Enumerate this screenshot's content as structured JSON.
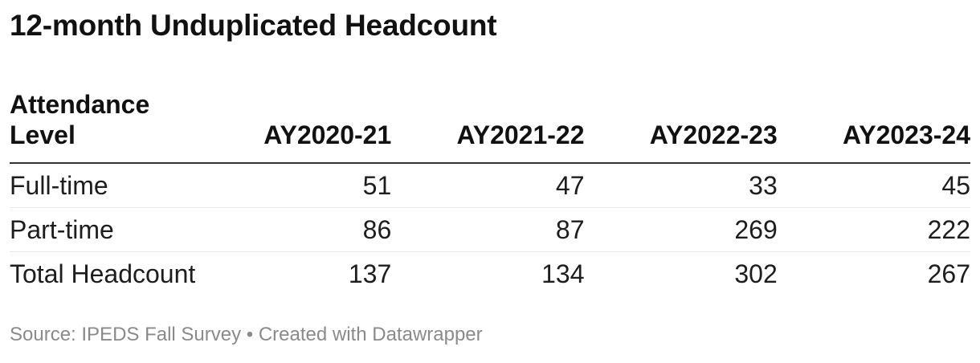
{
  "title": "12-month Unduplicated Headcount",
  "table": {
    "header": {
      "label_column": "Attendance Level",
      "year_columns": [
        "AY2020-21",
        "AY2021-22",
        "AY2022-23",
        "AY2023-24"
      ]
    },
    "rows": [
      {
        "label": "Full-time",
        "values": [
          "51",
          "47",
          "33",
          "45"
        ]
      },
      {
        "label": "Part-time",
        "values": [
          "86",
          "87",
          "269",
          "222"
        ]
      },
      {
        "label": "Total Headcount",
        "values": [
          "137",
          "134",
          "302",
          "267"
        ]
      }
    ]
  },
  "footer": {
    "text": "Source: IPEDS Fall Survey • Created with Datawrapper"
  },
  "colors": {
    "title-color": "#111111",
    "text-dark": "#1d1d1d",
    "rule-dark": "#333333",
    "rule-light": "#e8e8e8",
    "footer-gray": "#8a8a8a",
    "bg": "#ffffff"
  },
  "chart_data": {
    "type": "table",
    "title": "12-month Unduplicated Headcount",
    "categories": [
      "AY2020-21",
      "AY2021-22",
      "AY2022-23",
      "AY2023-24"
    ],
    "row_header_label": "Attendance Level",
    "series": [
      {
        "name": "Full-time",
        "values": [
          51,
          47,
          33,
          45
        ]
      },
      {
        "name": "Part-time",
        "values": [
          86,
          87,
          269,
          222
        ]
      },
      {
        "name": "Total Headcount",
        "values": [
          137,
          134,
          302,
          267
        ]
      }
    ],
    "source_note": "Source: IPEDS Fall Survey • Created with Datawrapper"
  }
}
